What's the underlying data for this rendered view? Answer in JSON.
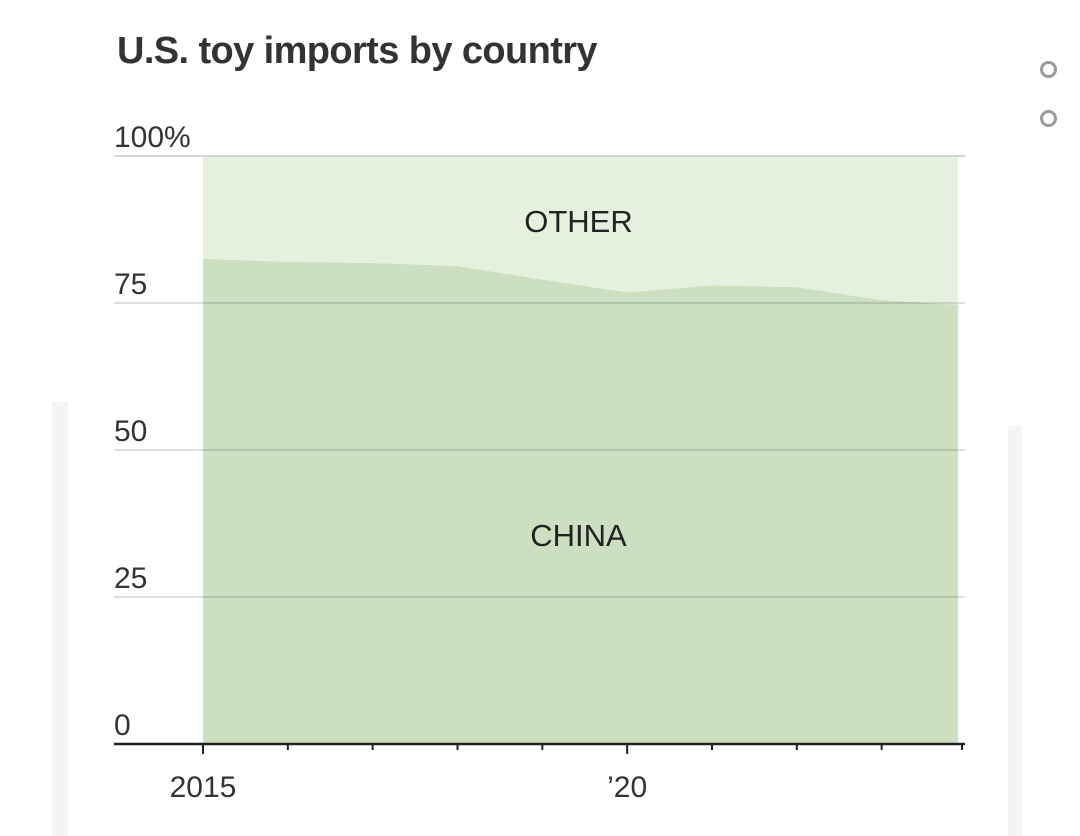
{
  "chart_data": {
    "type": "area",
    "title": "U.S. toy imports by country",
    "x": [
      2015,
      2016,
      2017,
      2018,
      2019,
      2020,
      2021,
      2022,
      2023,
      2023.9
    ],
    "xlim": [
      2015,
      2024
    ],
    "x_ticks": [
      2015,
      2016,
      2017,
      2018,
      2019,
      2020,
      2021,
      2022,
      2023,
      2024
    ],
    "x_tick_labels": [
      {
        "x": 2015,
        "label": "2015"
      },
      {
        "x": 2020,
        "label": "’20"
      }
    ],
    "series": [
      {
        "name": "CHINA",
        "values": [
          82.5,
          82.0,
          81.8,
          81.3,
          79.0,
          76.8,
          78.0,
          77.7,
          75.5,
          74.7
        ],
        "color": "#cce0c1"
      },
      {
        "name": "OTHER",
        "values": [
          17.5,
          18.0,
          18.2,
          18.7,
          21.0,
          23.2,
          22.0,
          22.3,
          24.5,
          25.3
        ],
        "color": "#e6f0df"
      }
    ],
    "stacked": true,
    "ylim": [
      0,
      100
    ],
    "y_ticks": [
      {
        "value": 0,
        "label": "0"
      },
      {
        "value": 25,
        "label": "25"
      },
      {
        "value": 50,
        "label": "50"
      },
      {
        "value": 75,
        "label": "75"
      },
      {
        "value": 100,
        "label": "100%"
      }
    ],
    "grid": true,
    "legend": "inline"
  }
}
